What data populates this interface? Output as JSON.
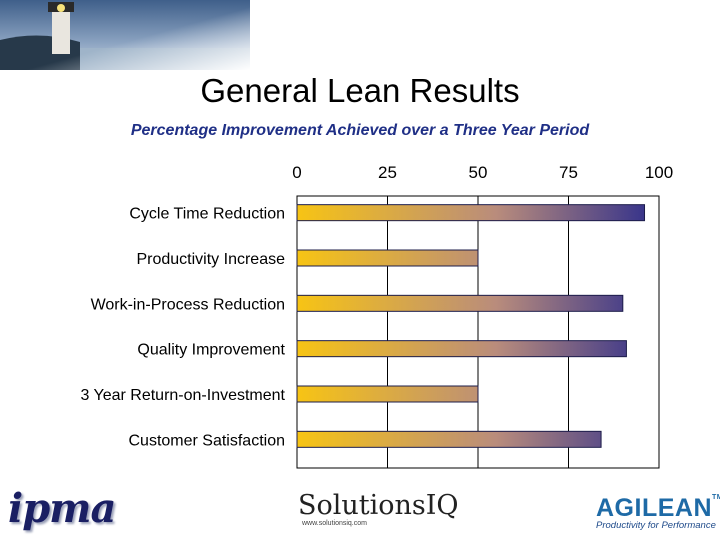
{
  "title": "General Lean Results",
  "subtitle": "Percentage Improvement Achieved over a Three Year Period",
  "colors": {
    "bar_start": "#f7c414",
    "bar_mid": "#b98c7c",
    "bar_end": "#2d2d8c",
    "subtitle": "#1f2f86",
    "grid": "#000000"
  },
  "chart_data": {
    "type": "bar",
    "orientation": "horizontal",
    "categories": [
      "Cycle Time Reduction",
      "Productivity Increase",
      "Work-in-Process Reduction",
      "Quality Improvement",
      "3 Year Return-on-Investment",
      "Customer Satisfaction"
    ],
    "values": [
      96,
      50,
      90,
      91,
      50,
      84
    ],
    "xlim": [
      0,
      100
    ],
    "x_ticks": [
      "0",
      "25",
      "50",
      "75",
      "100"
    ],
    "tick_position": "top",
    "grid": true,
    "legend": "none"
  },
  "logos": {
    "ipma": "ipma",
    "solutions": "SolutionsIQ",
    "solutions_sub": "www.solutionsiq.com",
    "agilean": "AGILEAN",
    "agilean_tm": "TM",
    "agilean_tagline": "Productivity for Performance"
  },
  "banner_icon": "lighthouse-photo"
}
